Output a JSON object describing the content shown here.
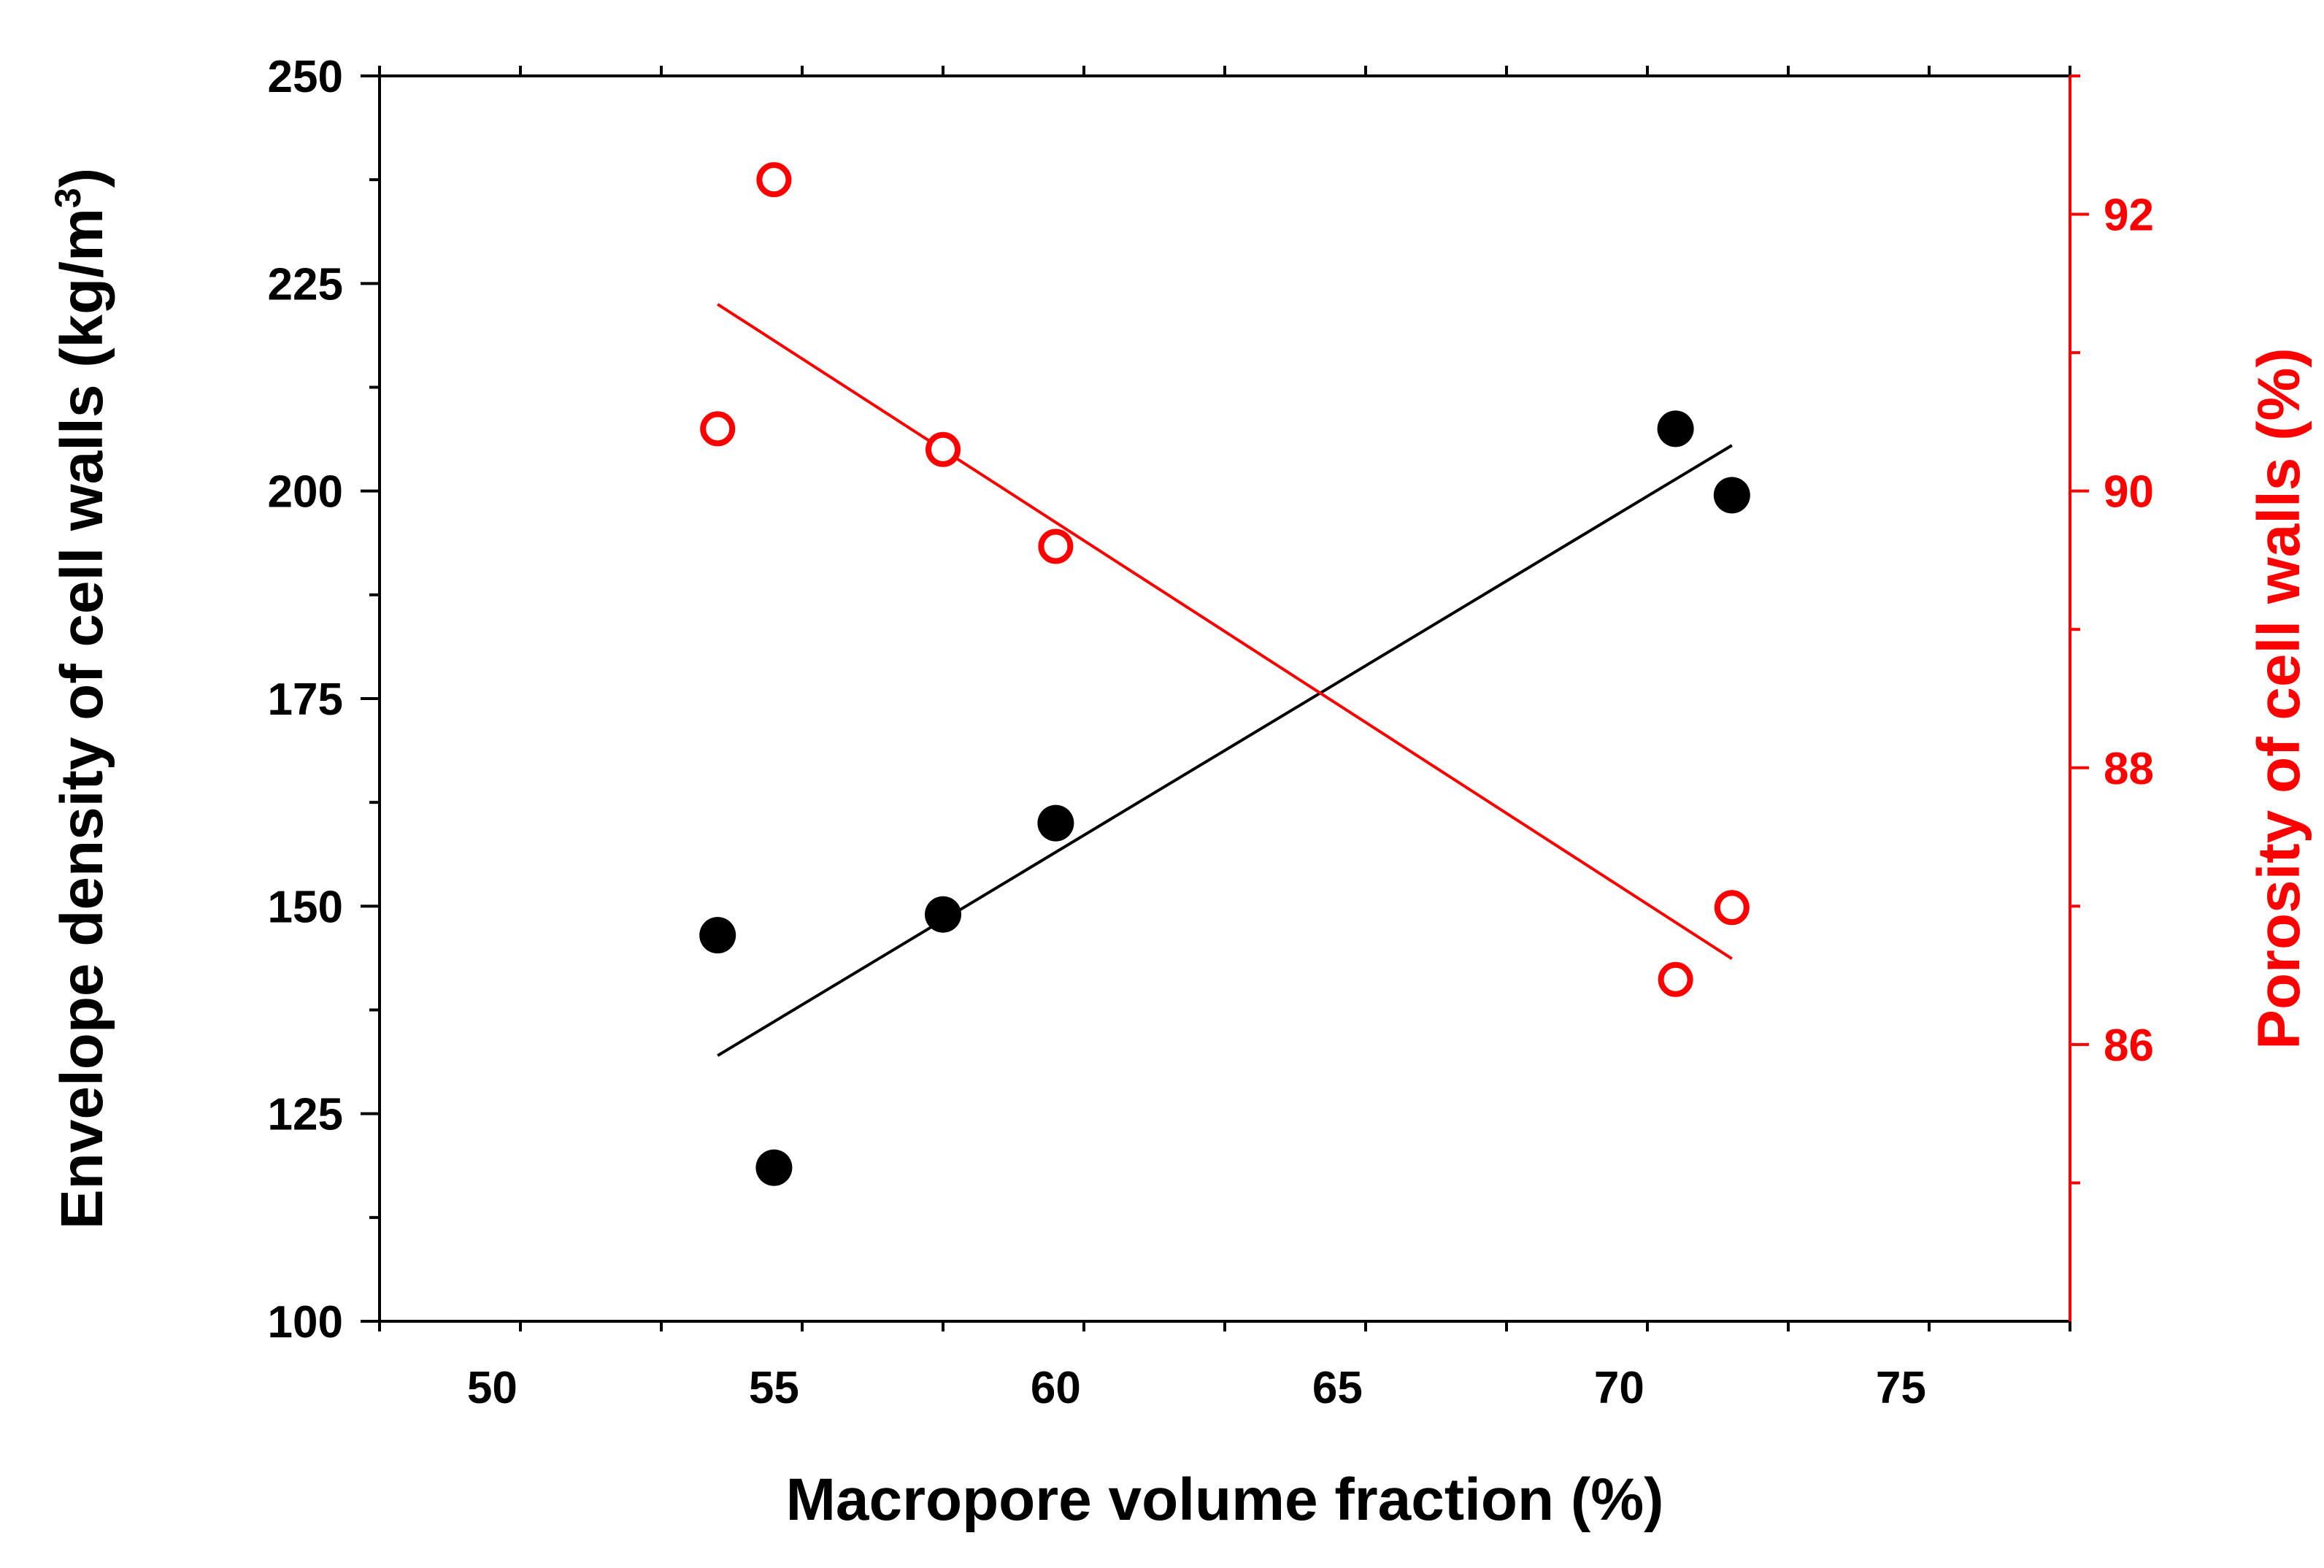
{
  "chart_data": {
    "type": "scatter",
    "title": "",
    "xlabel": "Macropore volume fraction (%)",
    "ylabel": "Envelope density of cell walls (kg/m",
    "ylabel_superscript": "3",
    "ylabel_suffix": ")",
    "y2label": "Porosity of cell walls (%)",
    "xlim": [
      48,
      78
    ],
    "ylim": [
      100,
      250
    ],
    "y2lim": [
      84,
      93
    ],
    "x_ticks": [
      50,
      55,
      60,
      65,
      70,
      75
    ],
    "x_tick_labels": [
      "50",
      "55",
      "60",
      "65",
      "70",
      "75"
    ],
    "y_ticks": [
      100,
      125,
      150,
      175,
      200,
      225,
      250
    ],
    "y_tick_labels": [
      "100",
      "125",
      "150",
      "175",
      "200",
      "225",
      "250"
    ],
    "y2_ticks": [
      86,
      88,
      90,
      92
    ],
    "y2_tick_labels": [
      "86",
      "88",
      "90",
      "92"
    ],
    "series": [
      {
        "name": "Envelope density of cell walls",
        "axis": "left",
        "marker": "filled-circle",
        "color": "#000000",
        "x": [
          54,
          55,
          58,
          60,
          71,
          72
        ],
        "y": [
          146.5,
          118.5,
          149,
          160,
          207.5,
          199.5
        ],
        "fit": {
          "x": [
            54,
            72
          ],
          "y": [
            132,
            205.5
          ]
        }
      },
      {
        "name": "Porosity of cell walls",
        "axis": "right",
        "marker": "open-circle",
        "color": "#ff0000",
        "x": [
          54,
          55,
          58,
          60,
          71,
          72
        ],
        "y": [
          90.45,
          92.25,
          90.3,
          89.6,
          86.47,
          86.99
        ],
        "fit": {
          "x": [
            54,
            72
          ],
          "y": [
            91.35,
            86.62
          ]
        }
      }
    ],
    "grid": false,
    "legend": "none"
  }
}
